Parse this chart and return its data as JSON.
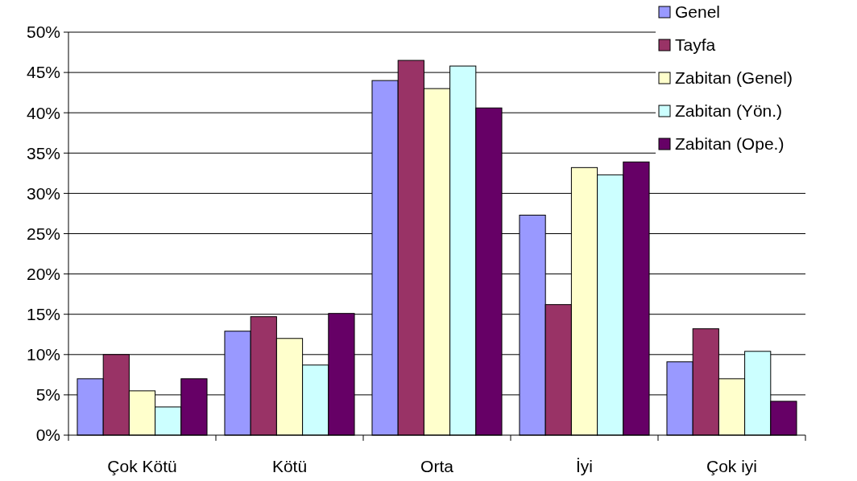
{
  "chart_data": {
    "type": "bar",
    "categories": [
      "Çok Kötü",
      "Kötü",
      "Orta",
      "İyi",
      "Çok iyi"
    ],
    "series": [
      {
        "name": "Genel",
        "color": "#9999ff",
        "values": [
          7,
          12.9,
          44,
          27.3,
          9.1
        ]
      },
      {
        "name": "Tayfa",
        "color": "#993366",
        "values": [
          10,
          14.7,
          46.5,
          16.2,
          13.2
        ]
      },
      {
        "name": "Zabitan (Genel)",
        "color": "#ffffcc",
        "values": [
          5.5,
          12,
          43,
          33.2,
          7
        ]
      },
      {
        "name": "Zabitan (Yön.)",
        "color": "#ccffff",
        "values": [
          3.5,
          8.7,
          45.8,
          32.3,
          10.4
        ]
      },
      {
        "name": "Zabitan (Ope.)",
        "color": "#660066",
        "values": [
          7,
          15.1,
          40.6,
          33.9,
          4.2
        ]
      }
    ],
    "ylim": [
      0,
      50
    ],
    "yticks": [
      {
        "value": 0,
        "label": "0%"
      },
      {
        "value": 5,
        "label": "5%"
      },
      {
        "value": 10,
        "label": "10%"
      },
      {
        "value": 15,
        "label": "15%"
      },
      {
        "value": 20,
        "label": "20%"
      },
      {
        "value": 25,
        "label": "25%"
      },
      {
        "value": 30,
        "label": "30%"
      },
      {
        "value": 35,
        "label": "35%"
      },
      {
        "value": 40,
        "label": "40%"
      },
      {
        "value": 45,
        "label": "45%"
      },
      {
        "value": 50,
        "label": "50%"
      }
    ],
    "grid": "y",
    "legend": "top right"
  }
}
